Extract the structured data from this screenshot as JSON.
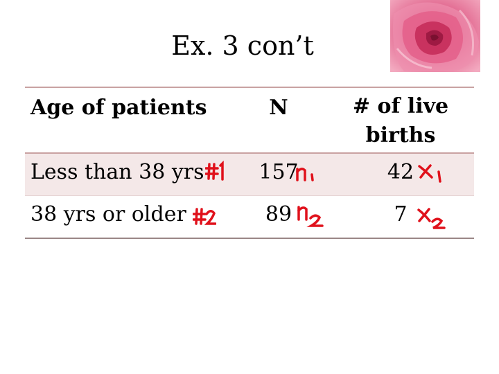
{
  "title": "Ex. 3 con’t",
  "table": {
    "headers": {
      "age": "Age of patients",
      "n": "N",
      "births_line1": "# of live",
      "births_line2": "births"
    },
    "rows": [
      {
        "age": "Less than 38 yrs",
        "n": "157",
        "births": "42"
      },
      {
        "age": "38 yrs or older",
        "n": "89",
        "births": "7"
      }
    ]
  },
  "handwritten_notes": {
    "color": "#e0111b",
    "row1": {
      "group": "#1",
      "n": "n1",
      "x": "x1"
    },
    "row2": {
      "group": "#2",
      "n": "n2",
      "x": "x2"
    }
  },
  "decoration": {
    "image": "pink rose photo",
    "rose_color": "#d9487a"
  }
}
